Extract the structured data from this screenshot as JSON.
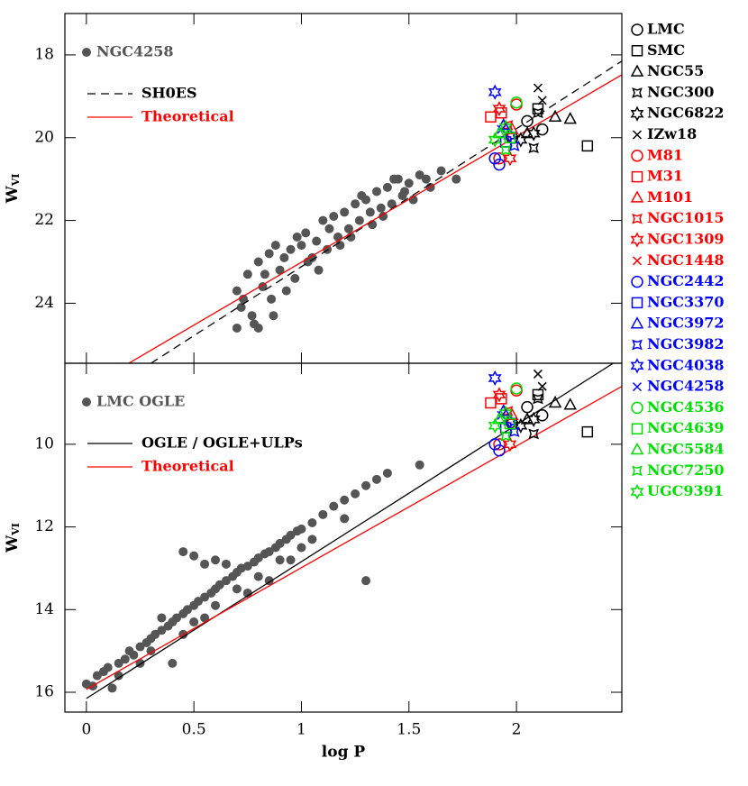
{
  "chart_data": [
    {
      "type": "scatter",
      "xlim": [
        -0.1,
        2.49
      ],
      "ylim": [
        17.0,
        25.45
      ],
      "y_inverted": true,
      "xticks": [
        0,
        0.5,
        1,
        1.5,
        2
      ],
      "xtick_labels": false,
      "yticks": [
        18,
        20,
        22,
        24
      ],
      "ylabel": "W",
      "ylabel_subscript": "VI",
      "series": [
        {
          "name": "NGC4258",
          "color": "#555555",
          "marker": "dot",
          "legend": "upper left",
          "x": [
            0.7,
            0.72,
            0.7,
            0.75,
            0.78,
            0.8,
            0.82,
            0.85,
            0.86,
            0.88,
            0.9,
            0.92,
            0.95,
            0.97,
            1.0,
            1.02,
            1.05,
            1.07,
            1.1,
            1.12,
            1.15,
            1.17,
            1.2,
            1.22,
            1.25,
            1.27,
            1.3,
            1.32,
            1.35,
            1.37,
            1.4,
            1.42,
            1.45,
            1.47,
            1.5,
            1.52,
            1.55,
            1.6,
            1.65,
            1.72,
            0.73,
            0.77,
            0.83,
            0.93,
            0.98,
            1.08,
            1.13,
            1.18,
            1.28,
            1.33,
            1.38,
            1.43,
            1.48,
            1.58,
            0.87,
            0.8,
            1.03,
            1.23
          ],
          "values": [
            23.7,
            24.1,
            24.6,
            23.3,
            24.5,
            23.0,
            23.6,
            22.8,
            23.9,
            22.6,
            23.2,
            22.9,
            22.7,
            23.4,
            22.6,
            22.3,
            22.9,
            22.5,
            22.0,
            22.7,
            21.9,
            22.4,
            21.8,
            22.2,
            21.6,
            22.0,
            21.5,
            21.8,
            21.3,
            21.7,
            21.2,
            21.6,
            21.0,
            21.4,
            21.1,
            21.5,
            20.9,
            21.2,
            20.8,
            21.0,
            23.9,
            24.3,
            23.3,
            23.7,
            22.4,
            23.2,
            22.2,
            22.6,
            21.4,
            22.1,
            21.9,
            21.0,
            21.3,
            21.0,
            24.3,
            24.6,
            23.0,
            22.4
          ]
        },
        {
          "name": "SH0ES",
          "color": "#000000",
          "linestyle": "dashed",
          "legend": "upper left",
          "x": [
            0.3,
            2.49
          ],
          "values": [
            25.45,
            18.15
          ]
        },
        {
          "name": "Theoretical",
          "color": "#ff0000",
          "linestyle": "solid",
          "legend": "upper left",
          "x": [
            0.197,
            2.49
          ],
          "values": [
            25.45,
            18.48
          ]
        },
        {
          "name": "LMC",
          "color": "#000000",
          "marker": "circle",
          "legend": "right",
          "x": [
            2.12,
            2.05,
            1.98
          ],
          "values": [
            19.8,
            19.6,
            20.0
          ]
        },
        {
          "name": "SMC",
          "color": "#000000",
          "marker": "square",
          "legend": "right",
          "x": [
            2.33,
            2.1
          ],
          "values": [
            20.2,
            19.3
          ]
        },
        {
          "name": "NGC55",
          "color": "#000000",
          "marker": "triangle",
          "legend": "right",
          "x": [
            2.18,
            2.25,
            2.05
          ],
          "values": [
            19.5,
            19.55,
            19.9
          ]
        },
        {
          "name": "NGC300",
          "color": "#000000",
          "marker": "star4",
          "legend": "right",
          "x": [
            2.08,
            2.1
          ],
          "values": [
            20.25,
            19.4
          ]
        },
        {
          "name": "NGC6822",
          "color": "#000000",
          "marker": "star6",
          "legend": "right",
          "x": [
            2.02,
            2.08
          ],
          "values": [
            20.05,
            19.9
          ]
        },
        {
          "name": "IZw18",
          "color": "#000000",
          "marker": "cross",
          "legend": "right",
          "x": [
            2.1,
            2.12
          ],
          "values": [
            18.8,
            19.1
          ]
        },
        {
          "name": "M81",
          "color": "#ff0000",
          "marker": "circle",
          "legend": "right",
          "x": [
            2.0,
            1.92
          ],
          "values": [
            19.2,
            20.5
          ]
        },
        {
          "name": "M31",
          "color": "#ff0000",
          "marker": "square",
          "legend": "right",
          "x": [
            1.88,
            1.93
          ],
          "values": [
            19.5,
            19.4
          ]
        },
        {
          "name": "M101",
          "color": "#ff0000",
          "marker": "triangle",
          "legend": "right",
          "x": [
            1.98
          ],
          "values": [
            19.8
          ]
        },
        {
          "name": "NGC1015",
          "color": "#ff0000",
          "marker": "star4",
          "legend": "right",
          "x": [
            1.96
          ],
          "values": [
            19.7
          ]
        },
        {
          "name": "NGC1309",
          "color": "#ff0000",
          "marker": "star6",
          "legend": "right",
          "x": [
            1.92,
            1.97
          ],
          "values": [
            19.3,
            20.5
          ]
        },
        {
          "name": "NGC1448",
          "color": "#ff0000",
          "marker": "cross",
          "legend": "right",
          "x": [
            1.95
          ],
          "values": [
            19.9
          ]
        },
        {
          "name": "NGC2442",
          "color": "#0000ff",
          "marker": "circle",
          "legend": "right",
          "x": [
            1.9,
            1.92
          ],
          "values": [
            20.5,
            20.65
          ]
        },
        {
          "name": "NGC3370",
          "color": "#0000ff",
          "marker": "square",
          "legend": "right",
          "x": [
            1.95
          ],
          "values": [
            20.1
          ]
        },
        {
          "name": "NGC3972",
          "color": "#0000ff",
          "marker": "triangle",
          "legend": "right",
          "x": [
            1.94
          ],
          "values": [
            19.7
          ]
        },
        {
          "name": "NGC3982",
          "color": "#0000ff",
          "marker": "star4",
          "legend": "right",
          "x": [
            1.99
          ],
          "values": [
            20.2
          ]
        },
        {
          "name": "NGC4038",
          "color": "#0000ff",
          "marker": "star6",
          "legend": "right",
          "x": [
            1.9,
            1.97
          ],
          "values": [
            18.9,
            19.95
          ]
        },
        {
          "name": "NGC4258",
          "color": "#0000ff",
          "marker": "cross",
          "legend": "right",
          "x": [
            1.93
          ],
          "values": [
            19.8
          ]
        },
        {
          "name": "NGC4536",
          "color": "#00e000",
          "marker": "circle",
          "legend": "right",
          "x": [
            2.0
          ],
          "values": [
            19.15
          ]
        },
        {
          "name": "NGC4639",
          "color": "#00e000",
          "marker": "square",
          "legend": "right",
          "x": [
            1.97
          ],
          "values": [
            20.0
          ]
        },
        {
          "name": "NGC5584",
          "color": "#00e000",
          "marker": "triangle",
          "legend": "right",
          "x": [
            1.92
          ],
          "values": [
            19.9
          ]
        },
        {
          "name": "NGC7250",
          "color": "#00e000",
          "marker": "star4",
          "legend": "right",
          "x": [
            1.95
          ],
          "values": [
            20.3
          ]
        },
        {
          "name": "UGC9391",
          "color": "#00e000",
          "marker": "star6",
          "legend": "right",
          "x": [
            1.9,
            1.95
          ],
          "values": [
            20.05,
            19.75
          ]
        }
      ]
    },
    {
      "type": "scatter",
      "xlim": [
        -0.1,
        2.49
      ],
      "ylim": [
        8.04,
        16.48
      ],
      "y_inverted": true,
      "xticks": [
        0,
        0.5,
        1,
        1.5,
        2
      ],
      "xtick_labels": true,
      "yticks": [
        10,
        12,
        14,
        16
      ],
      "ylabel": "W",
      "ylabel_subscript": "VI",
      "xlabel": "log P",
      "series": [
        {
          "name": "LMC OGLE",
          "color": "#555555",
          "marker": "dot",
          "legend": "upper left",
          "x": [
            0.0,
            0.03,
            0.05,
            0.08,
            0.1,
            0.12,
            0.15,
            0.18,
            0.2,
            0.22,
            0.25,
            0.28,
            0.3,
            0.32,
            0.35,
            0.38,
            0.4,
            0.42,
            0.45,
            0.47,
            0.5,
            0.52,
            0.55,
            0.58,
            0.6,
            0.62,
            0.65,
            0.68,
            0.7,
            0.72,
            0.75,
            0.78,
            0.8,
            0.83,
            0.85,
            0.88,
            0.9,
            0.93,
            0.95,
            0.98,
            1.0,
            1.05,
            1.1,
            1.15,
            1.2,
            1.25,
            1.3,
            1.35,
            1.4,
            1.55,
            0.45,
            0.5,
            0.55,
            0.6,
            1.3,
            0.4,
            0.35,
            0.5,
            0.6,
            0.7,
            0.8,
            0.9,
            1.0,
            1.05,
            1.2,
            0.65,
            0.75,
            0.85,
            0.95,
            0.3,
            0.25,
            0.15,
            0.45,
            0.55
          ],
          "values": [
            15.8,
            15.85,
            15.6,
            15.5,
            15.4,
            15.9,
            15.3,
            15.2,
            15.0,
            15.1,
            14.9,
            14.8,
            14.7,
            14.6,
            14.5,
            14.4,
            14.3,
            14.2,
            14.1,
            14.0,
            13.9,
            13.8,
            13.7,
            13.6,
            13.5,
            13.4,
            13.3,
            13.2,
            13.1,
            13.0,
            12.95,
            12.85,
            12.75,
            12.65,
            12.6,
            12.5,
            12.4,
            12.3,
            12.2,
            12.1,
            12.05,
            11.9,
            11.7,
            11.5,
            11.35,
            11.2,
            11.0,
            10.85,
            10.7,
            10.5,
            12.6,
            12.7,
            12.9,
            12.8,
            13.3,
            15.3,
            14.2,
            14.3,
            13.9,
            13.5,
            13.2,
            12.8,
            12.5,
            12.3,
            11.8,
            12.9,
            13.6,
            13.3,
            12.8,
            15.0,
            15.3,
            15.6,
            14.6,
            14.2
          ]
        },
        {
          "name": "OGLE / OGLE+ULPs",
          "color": "#000000",
          "linestyle": "solid",
          "legend": "upper left",
          "x": [
            0.0,
            2.45
          ],
          "values": [
            16.15,
            8.04
          ]
        },
        {
          "name": "Theoretical",
          "color": "#ff0000",
          "linestyle": "solid",
          "legend": "upper left",
          "x": [
            0.0,
            2.49
          ],
          "values": [
            15.93,
            8.6
          ]
        },
        {
          "name": "LMC",
          "color": "#000000",
          "marker": "circle",
          "x": [
            2.12,
            2.05,
            1.98
          ],
          "values": [
            9.3,
            9.1,
            9.5
          ]
        },
        {
          "name": "SMC",
          "color": "#000000",
          "marker": "square",
          "x": [
            2.33,
            2.1
          ],
          "values": [
            9.7,
            8.8
          ]
        },
        {
          "name": "NGC55",
          "color": "#000000",
          "marker": "triangle",
          "x": [
            2.18,
            2.25,
            2.05
          ],
          "values": [
            9.0,
            9.05,
            9.4
          ]
        },
        {
          "name": "NGC300",
          "color": "#000000",
          "marker": "star4",
          "x": [
            2.08,
            2.1
          ],
          "values": [
            9.75,
            8.9
          ]
        },
        {
          "name": "NGC6822",
          "color": "#000000",
          "marker": "star6",
          "x": [
            2.02,
            2.08
          ],
          "values": [
            9.55,
            9.4
          ]
        },
        {
          "name": "IZw18",
          "color": "#000000",
          "marker": "cross",
          "x": [
            2.1,
            2.12
          ],
          "values": [
            8.3,
            8.6
          ]
        },
        {
          "name": "M81",
          "color": "#ff0000",
          "marker": "circle",
          "x": [
            2.0,
            1.92
          ],
          "values": [
            8.7,
            10.0
          ]
        },
        {
          "name": "M31",
          "color": "#ff0000",
          "marker": "square",
          "x": [
            1.88,
            1.93
          ],
          "values": [
            9.0,
            8.9
          ]
        },
        {
          "name": "M101",
          "color": "#ff0000",
          "marker": "triangle",
          "x": [
            1.98
          ],
          "values": [
            9.3
          ]
        },
        {
          "name": "NGC1015",
          "color": "#ff0000",
          "marker": "star4",
          "x": [
            1.96
          ],
          "values": [
            9.2
          ]
        },
        {
          "name": "NGC1309",
          "color": "#ff0000",
          "marker": "star6",
          "x": [
            1.92,
            1.97
          ],
          "values": [
            8.8,
            10.0
          ]
        },
        {
          "name": "NGC1448",
          "color": "#ff0000",
          "marker": "cross",
          "x": [
            1.95
          ],
          "values": [
            9.4
          ]
        },
        {
          "name": "NGC2442",
          "color": "#0000ff",
          "marker": "circle",
          "x": [
            1.9,
            1.92
          ],
          "values": [
            10.0,
            10.15
          ]
        },
        {
          "name": "NGC3370",
          "color": "#0000ff",
          "marker": "square",
          "x": [
            1.95
          ],
          "values": [
            9.6
          ]
        },
        {
          "name": "NGC3972",
          "color": "#0000ff",
          "marker": "triangle",
          "x": [
            1.94
          ],
          "values": [
            9.2
          ]
        },
        {
          "name": "NGC3982",
          "color": "#0000ff",
          "marker": "star4",
          "x": [
            1.99
          ],
          "values": [
            9.7
          ]
        },
        {
          "name": "NGC4038",
          "color": "#0000ff",
          "marker": "star6",
          "x": [
            1.9,
            1.97
          ],
          "values": [
            8.4,
            9.45
          ]
        },
        {
          "name": "NGC4258",
          "color": "#0000ff",
          "marker": "cross",
          "x": [
            1.93
          ],
          "values": [
            9.3
          ]
        },
        {
          "name": "NGC4536",
          "color": "#00e000",
          "marker": "circle",
          "x": [
            2.0
          ],
          "values": [
            8.65
          ]
        },
        {
          "name": "NGC4639",
          "color": "#00e000",
          "marker": "square",
          "x": [
            1.97
          ],
          "values": [
            9.5
          ]
        },
        {
          "name": "NGC5584",
          "color": "#00e000",
          "marker": "triangle",
          "x": [
            1.92
          ],
          "values": [
            9.4
          ]
        },
        {
          "name": "NGC7250",
          "color": "#00e000",
          "marker": "star4",
          "x": [
            1.95
          ],
          "values": [
            9.8
          ]
        },
        {
          "name": "UGC9391",
          "color": "#00e000",
          "marker": "star6",
          "x": [
            1.9,
            1.95
          ],
          "values": [
            9.55,
            9.25
          ]
        }
      ]
    }
  ]
}
